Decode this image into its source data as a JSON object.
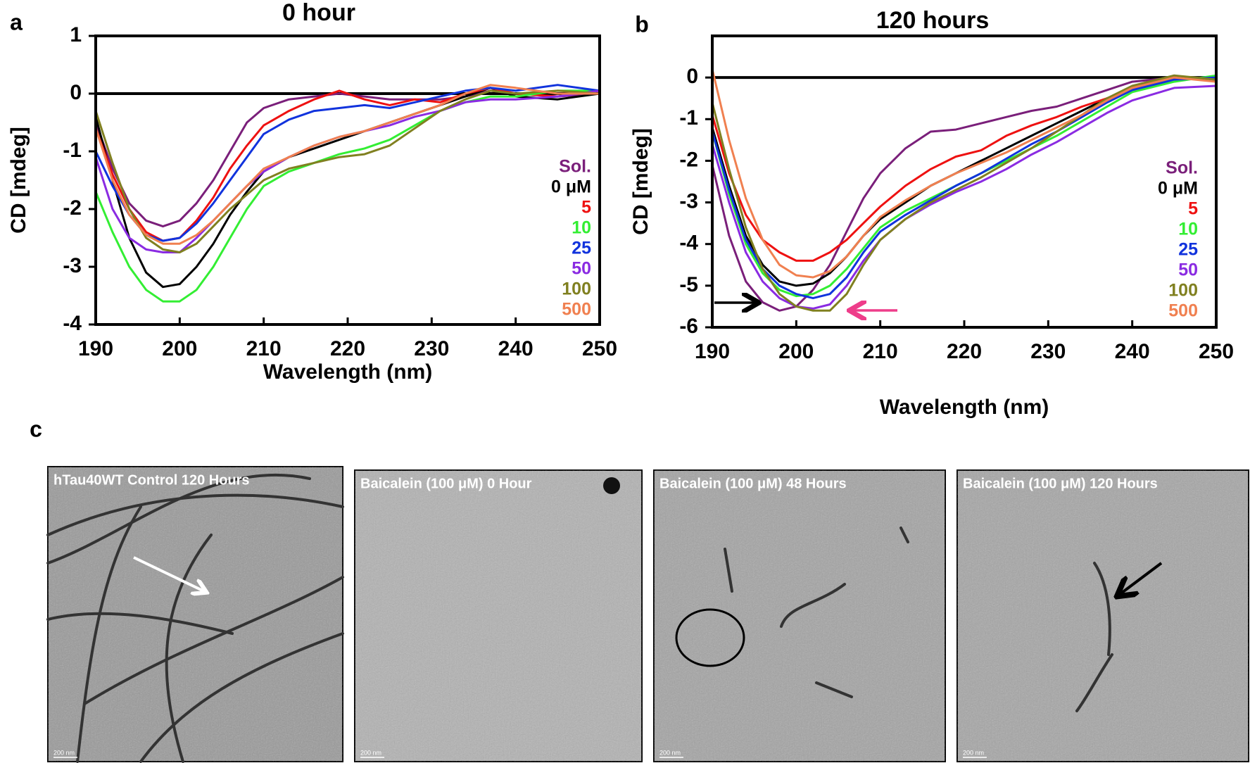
{
  "chart_data": [
    {
      "type": "line",
      "panel_label": "a",
      "title": "0 hour",
      "x_label": "Wavelength (nm)",
      "y_label": "CD [mdeg]",
      "xlim": [
        190,
        250
      ],
      "xticks": [
        190,
        200,
        210,
        220,
        230,
        240,
        250
      ],
      "ylim": [
        -4,
        1
      ],
      "yticks": [
        -4,
        -3,
        -2,
        -1,
        0,
        1
      ],
      "x": [
        190,
        192,
        194,
        196,
        198,
        200,
        202,
        204,
        206,
        208,
        210,
        213,
        216,
        219,
        222,
        225,
        228,
        231,
        234,
        237,
        240,
        245,
        250
      ],
      "series": [
        {
          "name": "Sol.",
          "color": "#7a1f7a",
          "values": [
            -0.5,
            -1.3,
            -1.9,
            -2.2,
            -2.3,
            -2.2,
            -1.9,
            -1.5,
            -1.0,
            -0.5,
            -0.25,
            -0.1,
            -0.05,
            0.0,
            -0.05,
            -0.1,
            -0.1,
            -0.1,
            -0.05,
            0.05,
            0.0,
            -0.05,
            0.0
          ]
        },
        {
          "name": "0 μM",
          "color": "#000000",
          "values": [
            -0.4,
            -1.5,
            -2.5,
            -3.1,
            -3.35,
            -3.3,
            -3.0,
            -2.6,
            -2.1,
            -1.7,
            -1.35,
            -1.1,
            -0.95,
            -0.8,
            -0.65,
            -0.5,
            -0.35,
            -0.2,
            -0.05,
            0.1,
            -0.05,
            -0.1,
            0.0
          ]
        },
        {
          "name": "5",
          "color": "#ee1111",
          "values": [
            -0.6,
            -1.4,
            -2.0,
            -2.4,
            -2.55,
            -2.5,
            -2.2,
            -1.8,
            -1.3,
            -0.9,
            -0.55,
            -0.3,
            -0.1,
            0.05,
            -0.1,
            -0.2,
            -0.1,
            -0.15,
            0.0,
            0.1,
            0.0,
            -0.05,
            0.05
          ]
        },
        {
          "name": "10",
          "color": "#33ee33",
          "values": [
            -1.7,
            -2.4,
            -3.0,
            -3.4,
            -3.6,
            -3.6,
            -3.4,
            -3.0,
            -2.5,
            -2.0,
            -1.6,
            -1.35,
            -1.2,
            -1.05,
            -0.95,
            -0.8,
            -0.55,
            -0.3,
            -0.15,
            -0.05,
            -0.05,
            0.05,
            0.05
          ]
        },
        {
          "name": "25",
          "color": "#1133dd",
          "values": [
            -1.0,
            -1.6,
            -2.1,
            -2.45,
            -2.55,
            -2.5,
            -2.25,
            -1.9,
            -1.5,
            -1.1,
            -0.7,
            -0.45,
            -0.3,
            -0.25,
            -0.2,
            -0.25,
            -0.15,
            -0.05,
            0.05,
            0.1,
            0.05,
            0.15,
            0.05
          ]
        },
        {
          "name": "50",
          "color": "#8a2be2",
          "values": [
            -1.1,
            -2.0,
            -2.5,
            -2.7,
            -2.75,
            -2.75,
            -2.5,
            -2.2,
            -1.9,
            -1.6,
            -1.35,
            -1.1,
            -0.9,
            -0.75,
            -0.65,
            -0.55,
            -0.4,
            -0.3,
            -0.15,
            -0.1,
            -0.1,
            -0.05,
            0.05
          ]
        },
        {
          "name": "100",
          "color": "#808020",
          "values": [
            -0.3,
            -1.2,
            -2.0,
            -2.5,
            -2.7,
            -2.75,
            -2.6,
            -2.3,
            -2.0,
            -1.75,
            -1.5,
            -1.3,
            -1.2,
            -1.1,
            -1.05,
            -0.9,
            -0.6,
            -0.3,
            -0.1,
            0.05,
            0.0,
            0.05,
            0.0
          ]
        },
        {
          "name": "500",
          "color": "#f08050",
          "values": [
            -0.6,
            -1.5,
            -2.1,
            -2.45,
            -2.6,
            -2.6,
            -2.45,
            -2.2,
            -1.9,
            -1.6,
            -1.3,
            -1.1,
            -0.9,
            -0.75,
            -0.65,
            -0.5,
            -0.35,
            -0.2,
            0.0,
            0.15,
            0.1,
            0.0,
            0.0
          ]
        }
      ]
    },
    {
      "type": "line",
      "panel_label": "b",
      "title": "120 hours",
      "x_label": "Wavelength (nm)",
      "y_label": "CD [mdeg]",
      "xlim": [
        190,
        250
      ],
      "xticks": [
        190,
        200,
        210,
        220,
        230,
        240,
        250
      ],
      "ylim": [
        -6,
        1
      ],
      "yticks": [
        -6,
        -5,
        -4,
        -3,
        -2,
        -1,
        0
      ],
      "x": [
        190,
        192,
        194,
        196,
        198,
        200,
        202,
        204,
        206,
        208,
        210,
        213,
        216,
        219,
        222,
        225,
        228,
        231,
        234,
        237,
        240,
        245,
        250
      ],
      "series": [
        {
          "name": "Sol.",
          "color": "#7a1f7a",
          "values": [
            -2.1,
            -3.8,
            -4.9,
            -5.4,
            -5.6,
            -5.5,
            -5.1,
            -4.5,
            -3.7,
            -2.9,
            -2.3,
            -1.7,
            -1.3,
            -1.25,
            -1.1,
            -0.95,
            -0.8,
            -0.7,
            -0.5,
            -0.3,
            -0.1,
            0.0,
            -0.05
          ]
        },
        {
          "name": "0 μM",
          "color": "#000000",
          "values": [
            -1.2,
            -2.6,
            -3.8,
            -4.5,
            -4.9,
            -5.0,
            -4.95,
            -4.7,
            -4.3,
            -3.8,
            -3.4,
            -3.0,
            -2.6,
            -2.3,
            -2.0,
            -1.7,
            -1.4,
            -1.1,
            -0.8,
            -0.5,
            -0.25,
            0.0,
            -0.05
          ]
        },
        {
          "name": "5",
          "color": "#ee1111",
          "values": [
            -0.9,
            -2.3,
            -3.3,
            -3.9,
            -4.2,
            -4.4,
            -4.4,
            -4.2,
            -3.9,
            -3.5,
            -3.1,
            -2.6,
            -2.2,
            -1.9,
            -1.75,
            -1.4,
            -1.15,
            -0.95,
            -0.7,
            -0.5,
            -0.3,
            -0.05,
            0.0
          ]
        },
        {
          "name": "10",
          "color": "#33ee33",
          "values": [
            -1.3,
            -2.8,
            -4.0,
            -4.7,
            -5.1,
            -5.25,
            -5.2,
            -5.0,
            -4.6,
            -4.1,
            -3.6,
            -3.2,
            -2.9,
            -2.6,
            -2.3,
            -2.0,
            -1.7,
            -1.4,
            -1.05,
            -0.7,
            -0.35,
            -0.1,
            0.05
          ]
        },
        {
          "name": "25",
          "color": "#1133dd",
          "values": [
            -1.3,
            -2.7,
            -3.9,
            -4.6,
            -5.0,
            -5.2,
            -5.3,
            -5.2,
            -4.8,
            -4.2,
            -3.7,
            -3.3,
            -2.95,
            -2.6,
            -2.3,
            -1.95,
            -1.6,
            -1.3,
            -0.95,
            -0.6,
            -0.3,
            -0.05,
            0.0
          ]
        },
        {
          "name": "50",
          "color": "#8a2be2",
          "values": [
            -1.6,
            -3.0,
            -4.2,
            -4.9,
            -5.3,
            -5.5,
            -5.55,
            -5.45,
            -5.0,
            -4.4,
            -3.9,
            -3.4,
            -3.05,
            -2.75,
            -2.5,
            -2.2,
            -1.85,
            -1.55,
            -1.2,
            -0.85,
            -0.55,
            -0.25,
            -0.2
          ]
        },
        {
          "name": "100",
          "color": "#808020",
          "values": [
            -0.6,
            -2.2,
            -3.6,
            -4.6,
            -5.2,
            -5.5,
            -5.6,
            -5.6,
            -5.2,
            -4.5,
            -3.9,
            -3.4,
            -3.0,
            -2.7,
            -2.4,
            -2.05,
            -1.7,
            -1.3,
            -0.9,
            -0.5,
            -0.2,
            0.05,
            -0.05
          ]
        },
        {
          "name": "500",
          "color": "#f08050",
          "values": [
            0.2,
            -1.5,
            -2.9,
            -3.9,
            -4.5,
            -4.75,
            -4.8,
            -4.65,
            -4.3,
            -3.8,
            -3.35,
            -2.95,
            -2.6,
            -2.3,
            -2.05,
            -1.8,
            -1.5,
            -1.2,
            -0.9,
            -0.55,
            -0.25,
            0.0,
            -0.1
          ]
        }
      ]
    }
  ],
  "micrographs": {
    "panel_label": "c",
    "images": [
      {
        "label": "hTau40WT Control 120 Hours",
        "scale_bar": "200 nm"
      },
      {
        "label": "Baicalein (100 μM) 0 Hour",
        "scale_bar": "200 nm"
      },
      {
        "label": "Baicalein (100 μM) 48 Hours",
        "scale_bar": "200 nm"
      },
      {
        "label": "Baicalein (100 μM) 120 Hours",
        "scale_bar": "200 nm"
      }
    ]
  }
}
